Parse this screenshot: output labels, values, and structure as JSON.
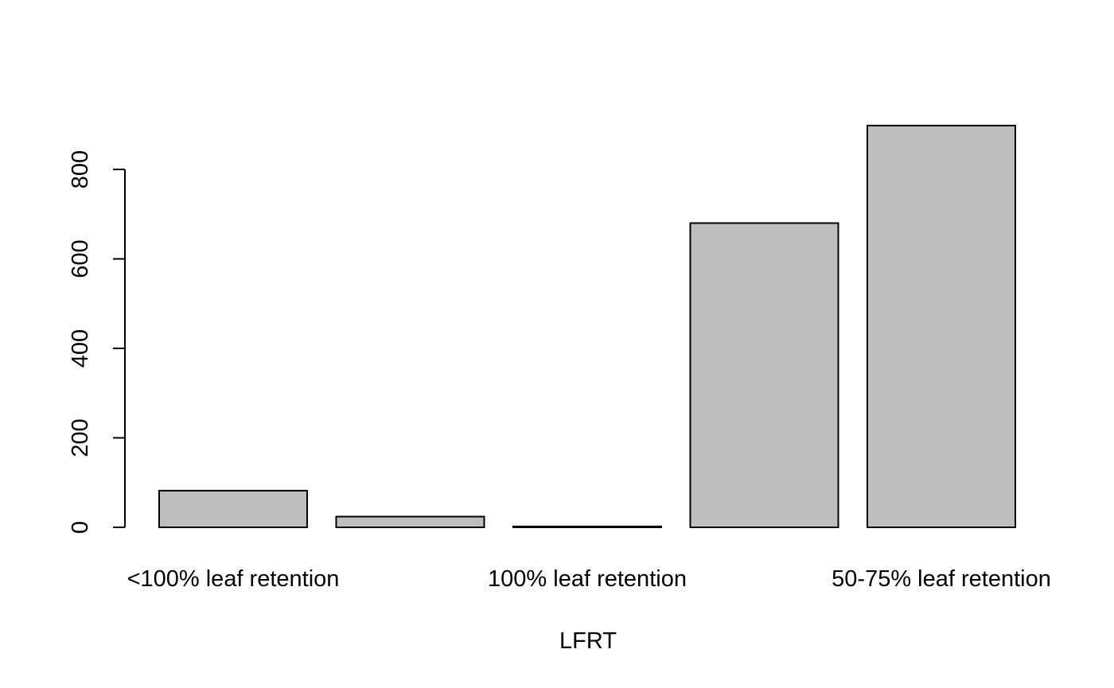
{
  "chart_data": {
    "type": "bar",
    "title": "",
    "xlabel": "LFRT",
    "ylabel": "",
    "categories": [
      "<100% leaf retention",
      "",
      "100% leaf retention",
      "",
      "50-75% leaf retention"
    ],
    "values": [
      82,
      24,
      2,
      680,
      898
    ],
    "ylim": [
      0,
      900
    ],
    "yticks": [
      0,
      200,
      400,
      600,
      800
    ],
    "grid": false,
    "colors": {
      "bar_fill": "#bebebe",
      "bar_stroke": "#000000"
    }
  }
}
